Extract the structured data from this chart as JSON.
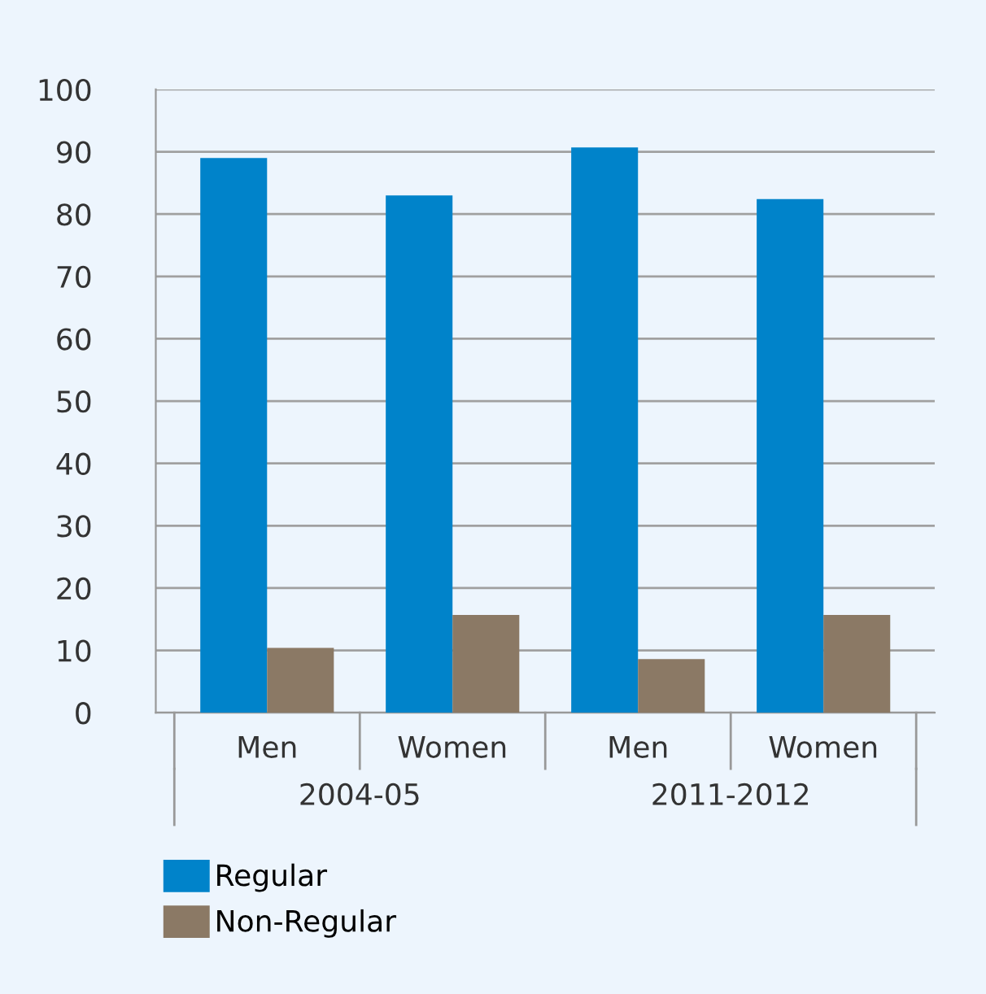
{
  "chart_data": {
    "type": "bar",
    "categories": [
      "Men",
      "Women",
      "Men",
      "Women"
    ],
    "series": [
      {
        "name": "Regular",
        "color": "#0083ca",
        "values": [
          89,
          83,
          90.7,
          82.4
        ]
      },
      {
        "name": "Non-Regular",
        "color": "#8b7965",
        "values": [
          10.4,
          15.7,
          8.6,
          15.7
        ]
      }
    ],
    "ylim": [
      0,
      100
    ],
    "yticks": [
      0,
      10,
      20,
      30,
      40,
      50,
      60,
      70,
      80,
      90,
      100
    ],
    "grid": "y",
    "legend": "bottom left",
    "annotations": [
      "2004-05",
      "2011-2012"
    ]
  }
}
